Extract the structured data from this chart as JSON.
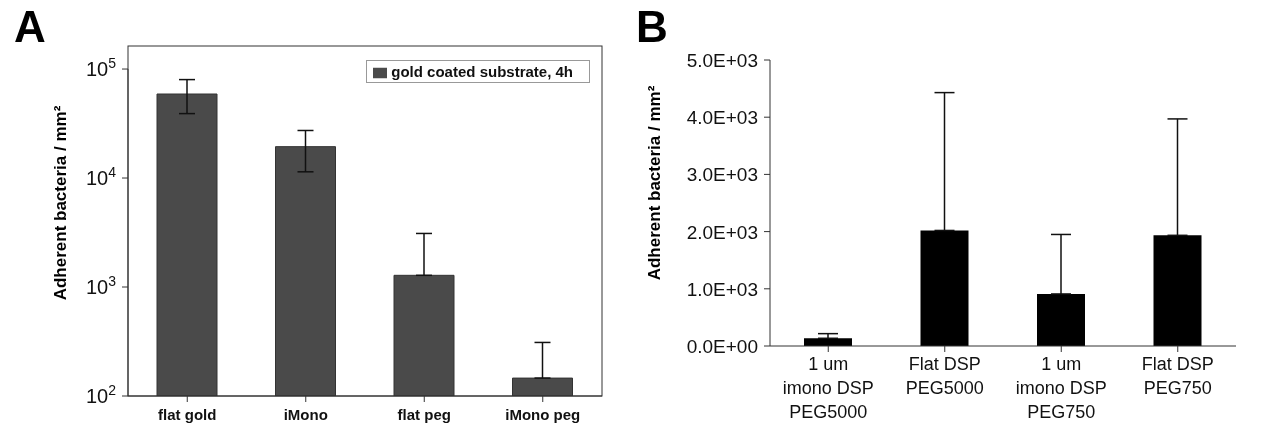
{
  "chart_data": [
    {
      "type": "bar",
      "title": "A",
      "ylabel": "Adherent bacteria / mm²",
      "categories": [
        "flat gold",
        "iMono",
        "flat peg",
        "iMono peg"
      ],
      "log": "y",
      "ylim": [
        100,
        100000
      ],
      "yticks": [
        {
          "value": 100,
          "label": "10$^{2}$"
        },
        {
          "value": 1000,
          "label": "10$^{3}$"
        },
        {
          "value": 10000,
          "label": "10$^{4}$"
        },
        {
          "value": 100000,
          "label": "10$^{5}$"
        }
      ],
      "legend": "top right",
      "series": [
        {
          "name": "gold coated substrate, 4h",
          "color": "#4a4a4a",
          "values": [
            59000,
            19400,
            1280,
            146
          ],
          "errors": [
            [
              39000,
              80000
            ],
            [
              11400,
              27300
            ],
            [
              1280,
              3100
            ],
            [
              146,
              310
            ]
          ]
        }
      ]
    },
    {
      "type": "bar",
      "title": "B",
      "ylabel": "Adherent bacteria / mm²",
      "categories": [
        "1 um imono DSP PEG5000",
        "Flat DSP PEG5000",
        "1 um imono DSP PEG750",
        "Flat DSP PEG750"
      ],
      "ylim": [
        0,
        5000
      ],
      "yticks": [
        {
          "value": 0,
          "label": "0.0E+00"
        },
        {
          "value": 1000,
          "label": "1.0E+03"
        },
        {
          "value": 2000,
          "label": "2.0E+03"
        },
        {
          "value": 3000,
          "label": "3.0E+03"
        },
        {
          "value": 4000,
          "label": "4.0E+03"
        },
        {
          "value": 5000,
          "label": "5.0E+03"
        }
      ],
      "series": [
        {
          "color": "#000000",
          "values": [
            135,
            2020,
            910,
            1935
          ],
          "errors": [
            [
              135,
              216
            ],
            [
              2020,
              4430
            ],
            [
              910,
              1950
            ],
            [
              1935,
              3970
            ]
          ]
        }
      ]
    }
  ]
}
